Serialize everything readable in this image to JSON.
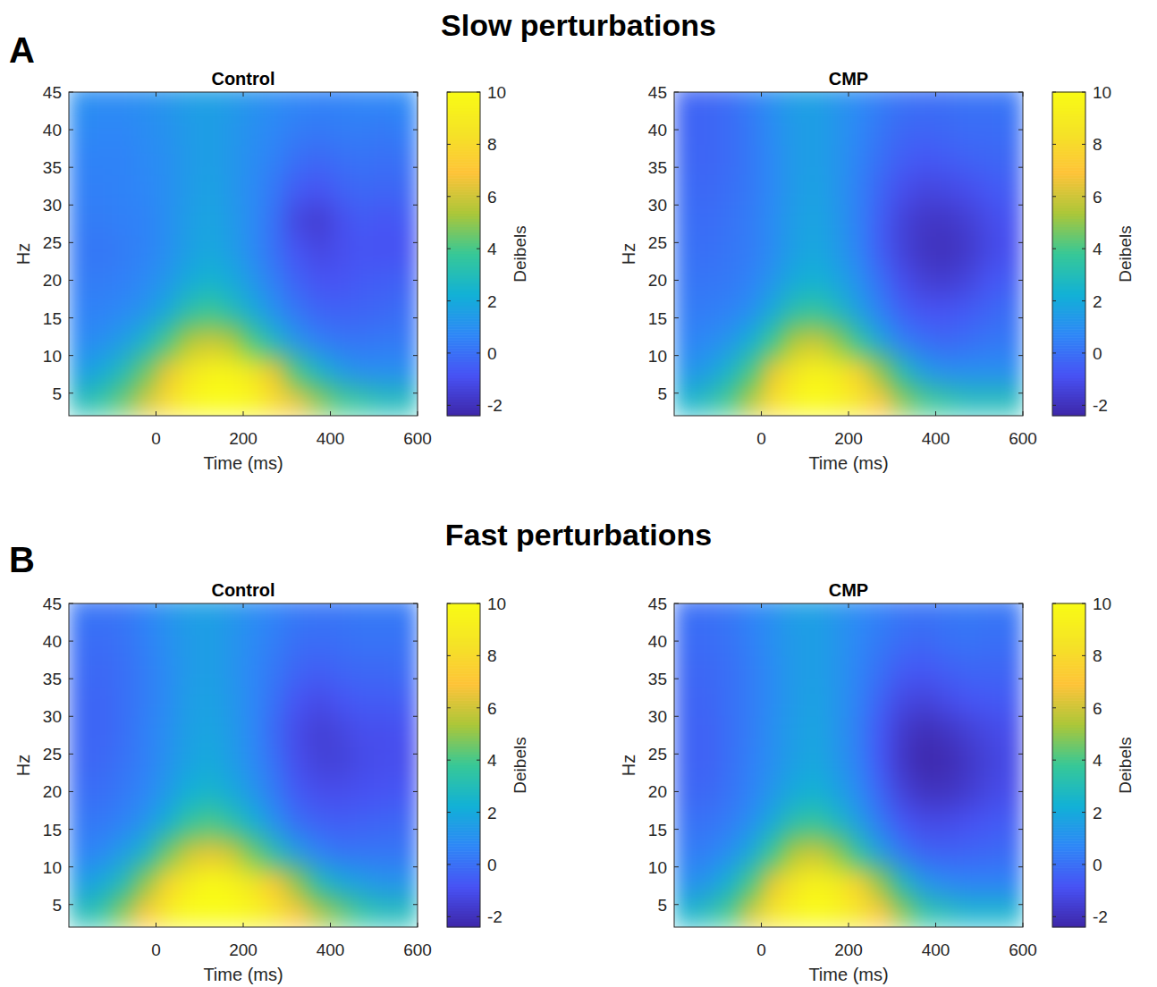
{
  "figure": {
    "groups": [
      {
        "letter": "A",
        "title": "Slow perturbations"
      },
      {
        "letter": "B",
        "title": "Fast perturbations"
      }
    ]
  },
  "chart_data": [
    {
      "type": "heatmap",
      "title": "Control",
      "x_label": "Time (ms)",
      "y_label": "Hz",
      "xlim": [
        -200,
        600
      ],
      "xticks": [
        0,
        200,
        400,
        600
      ],
      "ylim": [
        2,
        45
      ],
      "yticks": [
        5,
        10,
        15,
        20,
        25,
        30,
        35,
        40,
        45
      ],
      "x": [
        -175,
        -125,
        -75,
        -25,
        25,
        75,
        125,
        175,
        225,
        275,
        325,
        375,
        425,
        475,
        525,
        575
      ],
      "y": [
        4,
        8,
        12,
        16,
        20,
        24,
        28,
        32,
        36,
        40,
        44
      ],
      "values": [
        [
          3,
          3.5,
          4.5,
          6,
          8,
          9.5,
          10,
          10,
          9.5,
          8,
          6.5,
          5,
          4,
          3.5,
          3,
          3
        ],
        [
          1.5,
          2,
          3,
          4.5,
          6.5,
          8.5,
          9.5,
          9.5,
          8.5,
          6.5,
          4,
          2.5,
          1.5,
          1,
          1,
          1
        ],
        [
          0.8,
          1,
          1.5,
          2.5,
          4,
          5.5,
          6,
          5.5,
          4,
          2.5,
          1.2,
          0.5,
          0.2,
          0.2,
          0.3,
          0.3
        ],
        [
          0.6,
          0.6,
          0.8,
          1.2,
          2,
          3.2,
          3.8,
          3,
          2,
          1,
          0.2,
          -0.3,
          -0.4,
          -0.3,
          -0.2,
          0
        ],
        [
          0.4,
          0.4,
          0.5,
          0.8,
          1.3,
          2,
          2.4,
          2,
          1.2,
          0.4,
          -0.4,
          -0.8,
          -0.8,
          -0.6,
          -0.5,
          -0.4
        ],
        [
          0.3,
          0.2,
          0.4,
          0.6,
          1,
          1.6,
          1.9,
          1.5,
          0.8,
          0,
          -0.8,
          -1.2,
          -1,
          -0.8,
          -0.9,
          -0.8
        ],
        [
          0.4,
          0.4,
          0.5,
          0.6,
          1,
          1.5,
          1.8,
          1.4,
          0.8,
          0,
          -1.3,
          -1.6,
          -1,
          -0.6,
          -0.8,
          -0.6
        ],
        [
          0.5,
          0.5,
          0.6,
          0.7,
          1,
          1.4,
          1.7,
          1.3,
          0.8,
          0.2,
          -0.6,
          -0.8,
          -0.4,
          -0.2,
          -0.3,
          -0.2
        ],
        [
          0.6,
          0.6,
          0.6,
          0.8,
          1,
          1.4,
          1.6,
          1.3,
          0.9,
          0.5,
          0,
          -0.2,
          0,
          0.1,
          0,
          0.1
        ],
        [
          0.8,
          0.7,
          0.7,
          0.9,
          1.1,
          1.4,
          1.6,
          1.3,
          1,
          0.7,
          0.4,
          0.3,
          0.4,
          0.4,
          0.3,
          0.5
        ],
        [
          1,
          0.9,
          0.9,
          1,
          1.2,
          1.5,
          1.6,
          1.4,
          1.1,
          0.9,
          0.7,
          0.6,
          0.6,
          0.7,
          0.7,
          0.8
        ]
      ],
      "colorbar": {
        "label": "Deibels",
        "range": [
          -2.4,
          10
        ],
        "ticks": [
          -2,
          0,
          2,
          4,
          6,
          8,
          10
        ]
      }
    },
    {
      "type": "heatmap",
      "title": "CMP",
      "x_label": "Time (ms)",
      "y_label": "Hz",
      "xlim": [
        -200,
        600
      ],
      "xticks": [
        0,
        200,
        400,
        600
      ],
      "ylim": [
        2,
        45
      ],
      "yticks": [
        5,
        10,
        15,
        20,
        25,
        30,
        35,
        40,
        45
      ],
      "x": [
        -175,
        -125,
        -75,
        -25,
        25,
        75,
        125,
        175,
        225,
        275,
        325,
        375,
        425,
        475,
        525,
        575
      ],
      "y": [
        4,
        8,
        12,
        16,
        20,
        24,
        28,
        32,
        36,
        40,
        44
      ],
      "values": [
        [
          2.5,
          3,
          4,
          5.5,
          8,
          9.5,
          10,
          9.5,
          8.5,
          7,
          5,
          4,
          3.5,
          3,
          3,
          3
        ],
        [
          1.2,
          1.5,
          2.5,
          4,
          6.5,
          8.5,
          9.5,
          9,
          7.5,
          5,
          3,
          1.5,
          1,
          1,
          1,
          1
        ],
        [
          0.6,
          0.8,
          1.2,
          2.2,
          3.8,
          5.5,
          6,
          5,
          3.5,
          1.8,
          0.5,
          0,
          -0.2,
          0,
          0.2,
          0.3
        ],
        [
          0.4,
          0.4,
          0.6,
          1,
          2,
          3.2,
          3.6,
          2.8,
          1.6,
          0.5,
          -0.4,
          -0.8,
          -0.8,
          -0.6,
          -0.3,
          0
        ],
        [
          0.2,
          0.2,
          0.3,
          0.6,
          1.2,
          2,
          2.3,
          1.8,
          1,
          0,
          -1,
          -1.5,
          -1.6,
          -1.3,
          -0.8,
          -0.5
        ],
        [
          0.1,
          0,
          0.2,
          0.4,
          0.9,
          1.6,
          1.9,
          1.4,
          0.6,
          -0.5,
          -1.4,
          -1.9,
          -2,
          -1.7,
          -1.2,
          -0.9
        ],
        [
          0,
          -0.1,
          0.1,
          0.4,
          0.9,
          1.5,
          1.8,
          1.3,
          0.5,
          -0.5,
          -1.4,
          -1.8,
          -1.8,
          -1.5,
          -1.1,
          -0.8
        ],
        [
          -0.1,
          -0.2,
          0,
          0.3,
          0.8,
          1.4,
          1.7,
          1.2,
          0.5,
          -0.3,
          -1,
          -1.3,
          -1.2,
          -1,
          -0.7,
          -0.5
        ],
        [
          -0.2,
          -0.3,
          -0.1,
          0.3,
          0.8,
          1.4,
          1.6,
          1.2,
          0.6,
          0,
          -0.5,
          -0.7,
          -0.6,
          -0.4,
          -0.3,
          -0.2
        ],
        [
          -0.3,
          -0.3,
          -0.1,
          0.3,
          0.9,
          1.4,
          1.6,
          1.2,
          0.7,
          0.2,
          -0.2,
          -0.3,
          -0.2,
          -0.1,
          -0.1,
          0
        ],
        [
          -0.3,
          -0.3,
          -0.1,
          0.4,
          1,
          1.5,
          1.6,
          1.2,
          0.8,
          0.4,
          0.1,
          0,
          0,
          0.1,
          0.1,
          0.2
        ]
      ],
      "colorbar": {
        "label": "Deibels",
        "range": [
          -2.4,
          10
        ],
        "ticks": [
          -2,
          0,
          2,
          4,
          6,
          8,
          10
        ]
      }
    },
    {
      "type": "heatmap",
      "title": "Control",
      "x_label": "Time (ms)",
      "y_label": "Hz",
      "xlim": [
        -200,
        600
      ],
      "xticks": [
        0,
        200,
        400,
        600
      ],
      "ylim": [
        2,
        45
      ],
      "yticks": [
        5,
        10,
        15,
        20,
        25,
        30,
        35,
        40,
        45
      ],
      "x": [
        -175,
        -125,
        -75,
        -25,
        25,
        75,
        125,
        175,
        225,
        275,
        325,
        375,
        425,
        475,
        525,
        575
      ],
      "y": [
        4,
        8,
        12,
        16,
        20,
        24,
        28,
        32,
        36,
        40,
        44
      ],
      "values": [
        [
          3,
          3.5,
          5,
          7,
          9,
          10,
          10,
          10,
          9.5,
          8.5,
          7,
          5.5,
          4.5,
          3.5,
          3,
          3
        ],
        [
          1.5,
          2,
          3,
          5,
          7.5,
          9,
          10,
          9.5,
          8.5,
          7,
          5,
          3,
          2,
          1.5,
          1.2,
          1.2
        ],
        [
          0.6,
          0.8,
          1.5,
          2.5,
          4.5,
          6,
          6.5,
          6,
          4.5,
          3,
          1.5,
          0.6,
          0.2,
          0.2,
          0.2,
          0.2
        ],
        [
          0.3,
          0.3,
          0.6,
          1.2,
          2.2,
          3.5,
          4,
          3.3,
          2.2,
          1,
          0,
          -0.4,
          -0.5,
          -0.4,
          -0.3,
          -0.2
        ],
        [
          0,
          0,
          0.3,
          0.7,
          1.4,
          2.2,
          2.5,
          2,
          1.2,
          0.3,
          -0.6,
          -1,
          -1,
          -0.9,
          -0.8,
          -0.7
        ],
        [
          -0.2,
          -0.2,
          0.1,
          0.5,
          1.1,
          1.7,
          2,
          1.5,
          0.8,
          0,
          -1,
          -1.4,
          -1.4,
          -1.1,
          -1,
          -1
        ],
        [
          -0.2,
          -0.3,
          0,
          0.5,
          1,
          1.6,
          1.8,
          1.4,
          0.7,
          -0.2,
          -1.1,
          -1.5,
          -1.3,
          -1,
          -1,
          -0.9
        ],
        [
          -0.2,
          -0.3,
          0,
          0.4,
          0.9,
          1.5,
          1.7,
          1.3,
          0.7,
          0,
          -0.8,
          -1.1,
          -0.8,
          -0.6,
          -0.6,
          -0.5
        ],
        [
          -0.1,
          -0.2,
          0,
          0.4,
          0.9,
          1.4,
          1.6,
          1.2,
          0.7,
          0.2,
          -0.3,
          -0.5,
          -0.3,
          -0.2,
          -0.2,
          -0.1
        ],
        [
          0,
          -0.1,
          0.1,
          0.5,
          1,
          1.4,
          1.6,
          1.2,
          0.8,
          0.4,
          0,
          -0.1,
          0,
          0.1,
          0.1,
          0.1
        ],
        [
          0.2,
          0.1,
          0.2,
          0.6,
          1.1,
          1.5,
          1.6,
          1.3,
          0.9,
          0.6,
          0.3,
          0.2,
          0.2,
          0.3,
          0.3,
          0.3
        ]
      ],
      "colorbar": {
        "label": "Deibels",
        "range": [
          -2.4,
          10
        ],
        "ticks": [
          -2,
          0,
          2,
          4,
          6,
          8,
          10
        ]
      }
    },
    {
      "type": "heatmap",
      "title": "CMP",
      "x_label": "Time (ms)",
      "y_label": "Hz",
      "xlim": [
        -200,
        600
      ],
      "xticks": [
        0,
        200,
        400,
        600
      ],
      "ylim": [
        2,
        45
      ],
      "yticks": [
        5,
        10,
        15,
        20,
        25,
        30,
        35,
        40,
        45
      ],
      "x": [
        -175,
        -125,
        -75,
        -25,
        25,
        75,
        125,
        175,
        225,
        275,
        325,
        375,
        425,
        475,
        525,
        575
      ],
      "y": [
        4,
        8,
        12,
        16,
        20,
        24,
        28,
        32,
        36,
        40,
        44
      ],
      "values": [
        [
          2.5,
          3,
          4,
          6,
          8.5,
          9.5,
          10,
          9.5,
          8.5,
          7,
          5,
          3.5,
          3,
          2.5,
          2.5,
          2.5
        ],
        [
          1,
          1.3,
          2.3,
          4,
          6.5,
          8.5,
          9.5,
          9,
          7.5,
          5,
          2.8,
          1.3,
          0.8,
          0.6,
          0.6,
          0.6
        ],
        [
          0.4,
          0.5,
          1,
          2,
          3.8,
          5.5,
          6,
          5,
          3.3,
          1.6,
          0.3,
          -0.3,
          -0.4,
          -0.3,
          -0.2,
          -0.1
        ],
        [
          0.1,
          0.1,
          0.4,
          1,
          2,
          3.2,
          3.6,
          2.7,
          1.5,
          0.3,
          -0.7,
          -1.1,
          -1.1,
          -0.9,
          -0.7,
          -0.5
        ],
        [
          -0.2,
          -0.2,
          0.1,
          0.6,
          1.3,
          2,
          2.3,
          1.7,
          0.8,
          -0.3,
          -1.4,
          -1.9,
          -1.9,
          -1.6,
          -1.2,
          -1
        ],
        [
          -0.3,
          -0.4,
          0,
          0.5,
          1,
          1.6,
          1.9,
          1.3,
          0.5,
          -0.7,
          -1.8,
          -2.3,
          -2.2,
          -1.8,
          -1.4,
          -1.1
        ],
        [
          -0.3,
          -0.4,
          0,
          0.4,
          1,
          1.5,
          1.8,
          1.2,
          0.4,
          -0.7,
          -1.7,
          -2.1,
          -1.9,
          -1.5,
          -1.2,
          -1
        ],
        [
          -0.3,
          -0.3,
          0,
          0.4,
          0.9,
          1.4,
          1.7,
          1.2,
          0.5,
          -0.4,
          -1.2,
          -1.4,
          -1.1,
          -0.8,
          -0.7,
          -0.6
        ],
        [
          -0.2,
          -0.2,
          0,
          0.4,
          0.9,
          1.4,
          1.6,
          1.2,
          0.6,
          0,
          -0.6,
          -0.7,
          -0.5,
          -0.3,
          -0.3,
          -0.3
        ],
        [
          -0.1,
          -0.1,
          0.1,
          0.5,
          1,
          1.4,
          1.6,
          1.2,
          0.7,
          0.3,
          -0.1,
          -0.2,
          0,
          0.1,
          0,
          0
        ],
        [
          0,
          0,
          0.2,
          0.6,
          1,
          1.5,
          1.6,
          1.2,
          0.8,
          0.5,
          0.2,
          0.1,
          0.2,
          0.3,
          0.2,
          0.2
        ]
      ],
      "colorbar": {
        "label": "Deibels",
        "range": [
          -2.4,
          10
        ],
        "ticks": [
          -2,
          0,
          2,
          4,
          6,
          8,
          10
        ]
      }
    }
  ]
}
